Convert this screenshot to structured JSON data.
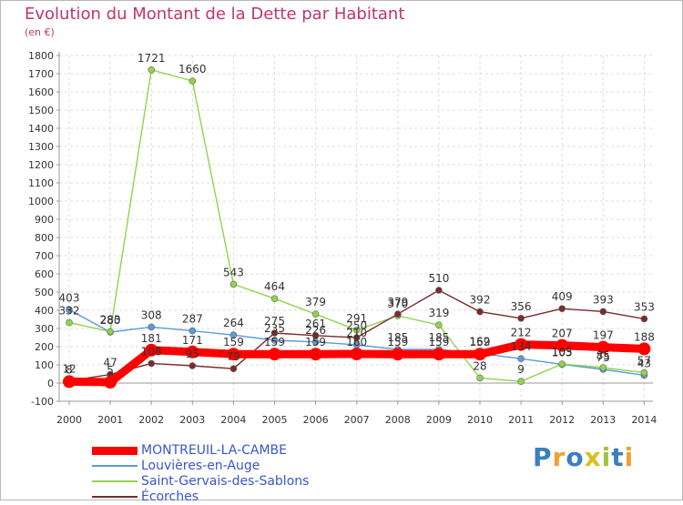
{
  "chart_data": {
    "type": "line",
    "title": "Evolution du Montant de la Dette par Habitant",
    "unit": "(en €)",
    "xlabel": "",
    "ylabel": "",
    "x": [
      "2000",
      "2001",
      "2002",
      "2003",
      "2004",
      "2005",
      "2006",
      "2007",
      "2008",
      "2009",
      "2010",
      "2011",
      "2012",
      "2013",
      "2014"
    ],
    "ylim": [
      -100,
      1800
    ],
    "yticks": [
      -100,
      0,
      100,
      200,
      300,
      400,
      500,
      600,
      700,
      800,
      900,
      1000,
      1100,
      1200,
      1300,
      1400,
      1500,
      1600,
      1700,
      1800
    ],
    "grid": true,
    "legend_position": "bottom-left",
    "series": [
      {
        "name": "MONTREUIL-LA-CAMBE",
        "color": "#ff0000",
        "width": 9,
        "values": [
          8,
          5,
          181,
          171,
          159,
          159,
          159,
          160,
          159,
          159,
          159,
          212,
          207,
          197,
          188
        ]
      },
      {
        "name": "Louvières-en-Auge",
        "color": "#5b9bd5",
        "width": 1.4,
        "values": [
          403,
          280,
          308,
          287,
          264,
          235,
          226,
          210,
          185,
          185,
          162,
          134,
          103,
          75,
          43
        ]
      },
      {
        "name": "Saint-Gervais-des-Sablons",
        "color": "#8fd44c",
        "width": 1.4,
        "values": [
          332,
          283,
          1721,
          1660,
          543,
          464,
          379,
          291,
          370,
          319,
          28,
          9,
          105,
          85,
          57
        ]
      },
      {
        "name": "Écorches",
        "color": "#7a2b2b",
        "width": 1.4,
        "values": [
          12,
          47,
          108,
          95,
          79,
          275,
          261,
          250,
          379,
          510,
          392,
          356,
          409,
          393,
          353
        ]
      }
    ]
  },
  "logo": {
    "text": "Proxiti",
    "colors": [
      "#3a7fc1",
      "#f0a030",
      "#3a7fc1",
      "#d8c020",
      "#9dc43a",
      "#3a7fc1",
      "#f0a030"
    ]
  }
}
